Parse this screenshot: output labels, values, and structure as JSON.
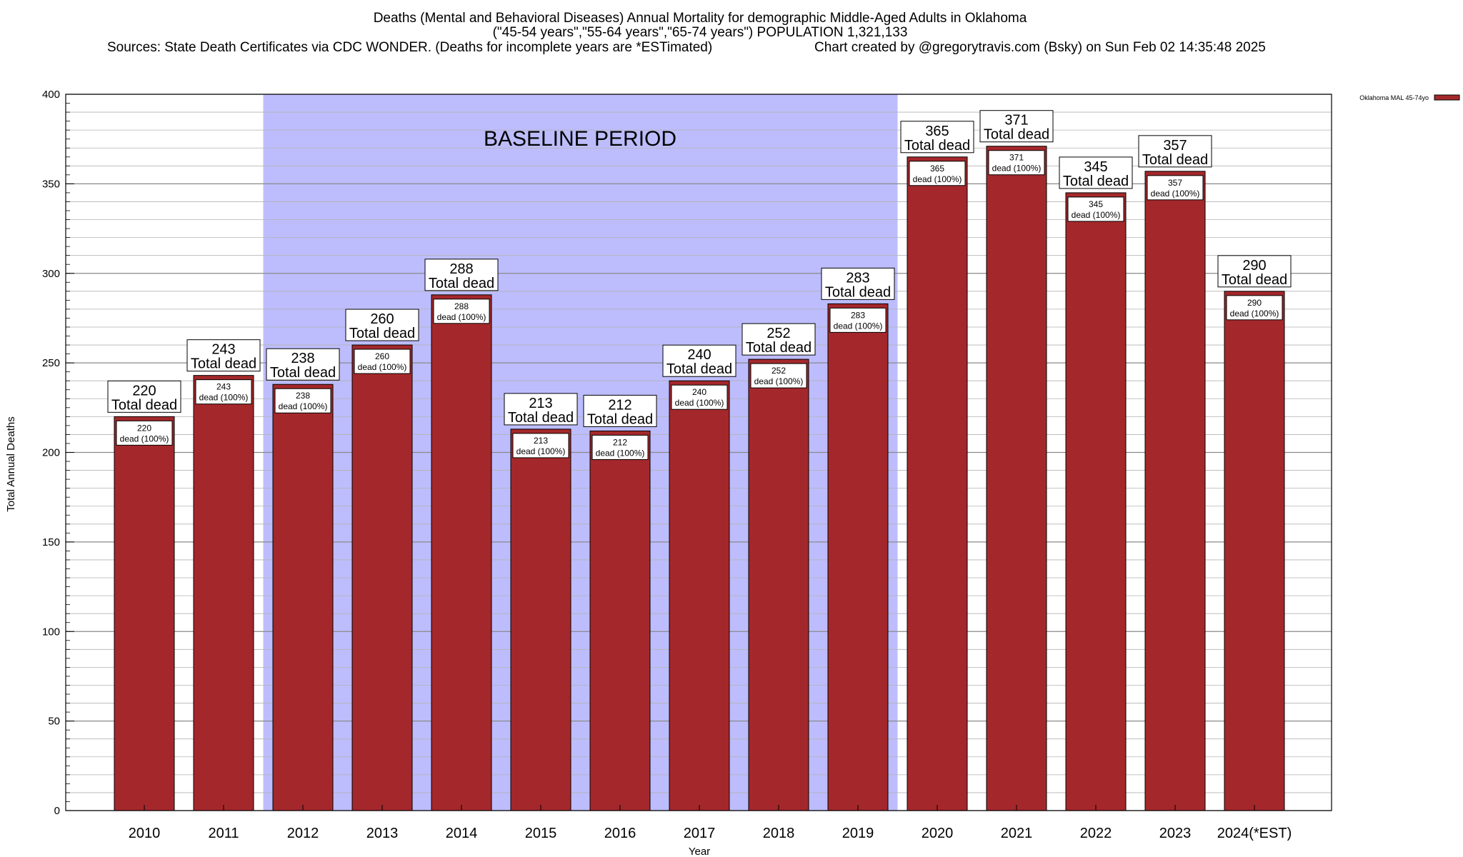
{
  "chart_data": {
    "type": "bar",
    "title": "Deaths (Mental and Behavioral Diseases) Annual Mortality for demographic Middle-Aged Adults in Oklahoma",
    "subtitle": "(\"45-54 years\",\"55-64 years\",\"65-74 years\") POPULATION 1,321,133",
    "sources": "Sources: State Death Certificates via CDC WONDER. (Deaths for incomplete years are *ESTimated)",
    "credit": "Chart created by @gregorytravis.com (Bsky) on Sun Feb 02 14:35:48 2025",
    "xlabel": "Year",
    "ylabel": "Total Annual Deaths",
    "ylim": [
      0,
      400
    ],
    "yticks": [
      0,
      50,
      100,
      150,
      200,
      250,
      300,
      350,
      400
    ],
    "grid": true,
    "legend_position": "top-right",
    "categories": [
      "2010",
      "2011",
      "2012",
      "2013",
      "2014",
      "2015",
      "2016",
      "2017",
      "2018",
      "2019",
      "2020",
      "2021",
      "2022",
      "2023",
      "2024(*EST)"
    ],
    "series": [
      {
        "name": "Oklahoma MAL 45-74yo",
        "color": "#a4282b",
        "values": [
          220,
          243,
          238,
          260,
          288,
          213,
          212,
          240,
          252,
          283,
          365,
          371,
          345,
          357,
          290
        ]
      }
    ],
    "total_label": "Total dead",
    "inner_label_suffix": "dead (100%)",
    "baseline": {
      "label": "BASELINE PERIOD",
      "from": "2012",
      "to": "2019",
      "color": "#bdbdfd"
    }
  }
}
